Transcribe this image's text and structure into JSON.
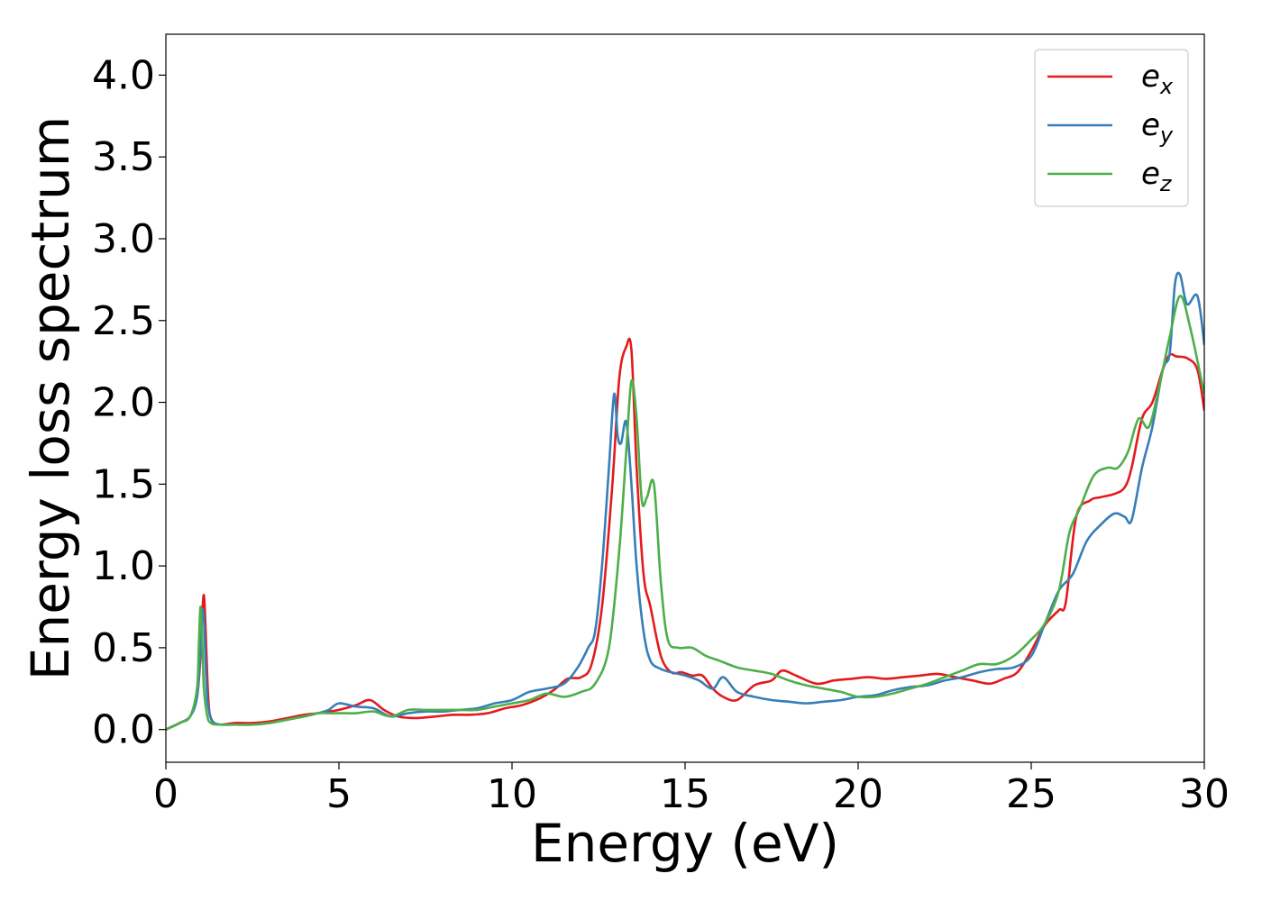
{
  "chart_data": {
    "type": "line",
    "xlabel": "Energy (eV)",
    "ylabel": "Energy loss spectrum",
    "xlim": [
      0,
      30
    ],
    "ylim": [
      -0.2,
      4.25
    ],
    "xticks": [
      "0",
      "5",
      "10",
      "15",
      "20",
      "25",
      "30"
    ],
    "yticks": [
      "0.0",
      "0.5",
      "1.0",
      "1.5",
      "2.0",
      "2.5",
      "3.0",
      "3.5",
      "4.0"
    ],
    "grid": false,
    "legend_position": "top-right",
    "series": [
      {
        "name": "e",
        "subscript": "x",
        "color": "#e41a1c",
        "x": [
          0,
          0.4,
          0.7,
          0.9,
          1.0,
          1.05,
          1.1,
          1.15,
          1.2,
          1.25,
          1.3,
          1.4,
          1.6,
          2.0,
          2.5,
          3.0,
          3.5,
          4.0,
          4.4,
          4.7,
          5.0,
          5.5,
          5.9,
          6.3,
          6.7,
          7.2,
          7.8,
          8.3,
          8.8,
          9.3,
          9.8,
          10.3,
          10.8,
          11.2,
          11.6,
          12.0,
          12.3,
          12.6,
          12.9,
          13.1,
          13.3,
          13.45,
          13.6,
          13.8,
          14.0,
          14.3,
          14.6,
          14.9,
          15.2,
          15.5,
          15.8,
          16.1,
          16.5,
          17.0,
          17.5,
          17.8,
          18.2,
          18.8,
          19.3,
          19.8,
          20.3,
          20.8,
          21.3,
          21.8,
          22.3,
          22.8,
          23.3,
          23.8,
          24.2,
          24.6,
          25.0,
          25.4,
          25.8,
          26.0,
          26.3,
          26.7,
          27.0,
          27.4,
          27.7,
          27.9,
          28.2,
          28.5,
          28.8,
          29.0,
          29.2,
          29.5,
          29.8,
          30.0
        ],
        "y": [
          0.0,
          0.04,
          0.08,
          0.2,
          0.45,
          0.7,
          0.82,
          0.6,
          0.3,
          0.12,
          0.07,
          0.04,
          0.03,
          0.04,
          0.04,
          0.05,
          0.07,
          0.09,
          0.1,
          0.11,
          0.12,
          0.15,
          0.18,
          0.12,
          0.08,
          0.07,
          0.08,
          0.09,
          0.09,
          0.1,
          0.13,
          0.15,
          0.19,
          0.24,
          0.31,
          0.32,
          0.4,
          0.75,
          1.5,
          2.15,
          2.34,
          2.32,
          1.6,
          0.95,
          0.75,
          0.45,
          0.35,
          0.35,
          0.33,
          0.33,
          0.25,
          0.2,
          0.18,
          0.27,
          0.3,
          0.36,
          0.33,
          0.28,
          0.3,
          0.31,
          0.32,
          0.31,
          0.32,
          0.33,
          0.34,
          0.32,
          0.3,
          0.28,
          0.31,
          0.35,
          0.48,
          0.64,
          0.73,
          0.78,
          1.3,
          1.4,
          1.42,
          1.44,
          1.48,
          1.6,
          1.9,
          2.0,
          2.2,
          2.29,
          2.28,
          2.27,
          2.2,
          1.95
        ]
      },
      {
        "name": "e",
        "subscript": "y",
        "color": "#377eb8",
        "x": [
          0,
          0.4,
          0.7,
          0.9,
          1.0,
          1.05,
          1.1,
          1.15,
          1.2,
          1.3,
          1.4,
          1.6,
          2.0,
          2.5,
          3.0,
          3.5,
          4.0,
          4.4,
          4.7,
          5.0,
          5.5,
          6.0,
          6.5,
          7.0,
          7.5,
          8.0,
          8.5,
          9.0,
          9.5,
          10.0,
          10.5,
          11.0,
          11.5,
          11.9,
          12.2,
          12.4,
          12.6,
          12.8,
          12.95,
          13.05,
          13.15,
          13.3,
          13.45,
          13.6,
          13.8,
          14.0,
          14.3,
          14.6,
          15.0,
          15.4,
          15.8,
          16.1,
          16.5,
          17.0,
          17.5,
          18.0,
          18.5,
          19.0,
          19.5,
          20.0,
          20.5,
          21.0,
          21.5,
          22.0,
          22.5,
          23.0,
          23.5,
          24.0,
          24.5,
          25.0,
          25.4,
          25.8,
          26.2,
          26.6,
          27.0,
          27.4,
          27.7,
          27.9,
          28.2,
          28.5,
          28.8,
          29.0,
          29.15,
          29.3,
          29.5,
          29.8,
          30.0
        ],
        "y": [
          0.0,
          0.04,
          0.08,
          0.2,
          0.5,
          0.72,
          0.68,
          0.4,
          0.18,
          0.07,
          0.04,
          0.03,
          0.03,
          0.03,
          0.04,
          0.06,
          0.08,
          0.1,
          0.12,
          0.16,
          0.14,
          0.13,
          0.08,
          0.1,
          0.11,
          0.11,
          0.12,
          0.13,
          0.16,
          0.18,
          0.23,
          0.25,
          0.28,
          0.38,
          0.5,
          0.6,
          1.0,
          1.6,
          2.05,
          1.8,
          1.75,
          1.88,
          1.5,
          1.0,
          0.6,
          0.42,
          0.37,
          0.35,
          0.33,
          0.3,
          0.25,
          0.32,
          0.23,
          0.2,
          0.18,
          0.17,
          0.16,
          0.17,
          0.18,
          0.2,
          0.21,
          0.24,
          0.26,
          0.27,
          0.3,
          0.32,
          0.35,
          0.37,
          0.38,
          0.45,
          0.65,
          0.85,
          0.95,
          1.15,
          1.25,
          1.32,
          1.3,
          1.28,
          1.6,
          1.85,
          2.2,
          2.3,
          2.72,
          2.78,
          2.6,
          2.65,
          2.35
        ]
      },
      {
        "name": "e",
        "subscript": "z",
        "color": "#4daf4a",
        "x": [
          0,
          0.4,
          0.7,
          0.9,
          0.95,
          1.0,
          1.05,
          1.1,
          1.2,
          1.3,
          1.5,
          2.0,
          2.5,
          3.0,
          3.5,
          4.0,
          4.4,
          4.7,
          5.0,
          5.5,
          6.0,
          6.5,
          7.0,
          7.5,
          8.0,
          8.5,
          9.0,
          9.5,
          10.0,
          10.5,
          11.0,
          11.5,
          12.0,
          12.4,
          12.8,
          13.1,
          13.3,
          13.45,
          13.6,
          13.75,
          13.9,
          14.1,
          14.3,
          14.5,
          14.8,
          15.2,
          15.6,
          16.0,
          16.5,
          17.0,
          17.5,
          18.0,
          18.5,
          19.0,
          19.5,
          20.0,
          20.5,
          21.0,
          21.5,
          22.0,
          22.5,
          23.0,
          23.5,
          24.0,
          24.5,
          25.0,
          25.4,
          25.8,
          26.1,
          26.4,
          26.8,
          27.2,
          27.5,
          27.8,
          28.1,
          28.4,
          28.7,
          29.0,
          29.3,
          29.6,
          30.0
        ],
        "y": [
          0.0,
          0.04,
          0.08,
          0.25,
          0.5,
          0.75,
          0.55,
          0.25,
          0.08,
          0.04,
          0.03,
          0.03,
          0.03,
          0.04,
          0.06,
          0.08,
          0.1,
          0.1,
          0.1,
          0.1,
          0.11,
          0.08,
          0.12,
          0.12,
          0.12,
          0.12,
          0.12,
          0.14,
          0.16,
          0.18,
          0.22,
          0.2,
          0.23,
          0.28,
          0.5,
          1.1,
          1.7,
          2.13,
          1.9,
          1.4,
          1.42,
          1.5,
          0.9,
          0.55,
          0.5,
          0.5,
          0.45,
          0.42,
          0.38,
          0.36,
          0.34,
          0.3,
          0.27,
          0.25,
          0.23,
          0.2,
          0.2,
          0.22,
          0.25,
          0.28,
          0.32,
          0.36,
          0.4,
          0.4,
          0.45,
          0.55,
          0.65,
          0.85,
          1.2,
          1.35,
          1.55,
          1.6,
          1.6,
          1.7,
          1.9,
          1.85,
          2.1,
          2.4,
          2.65,
          2.45,
          2.05
        ]
      }
    ]
  }
}
